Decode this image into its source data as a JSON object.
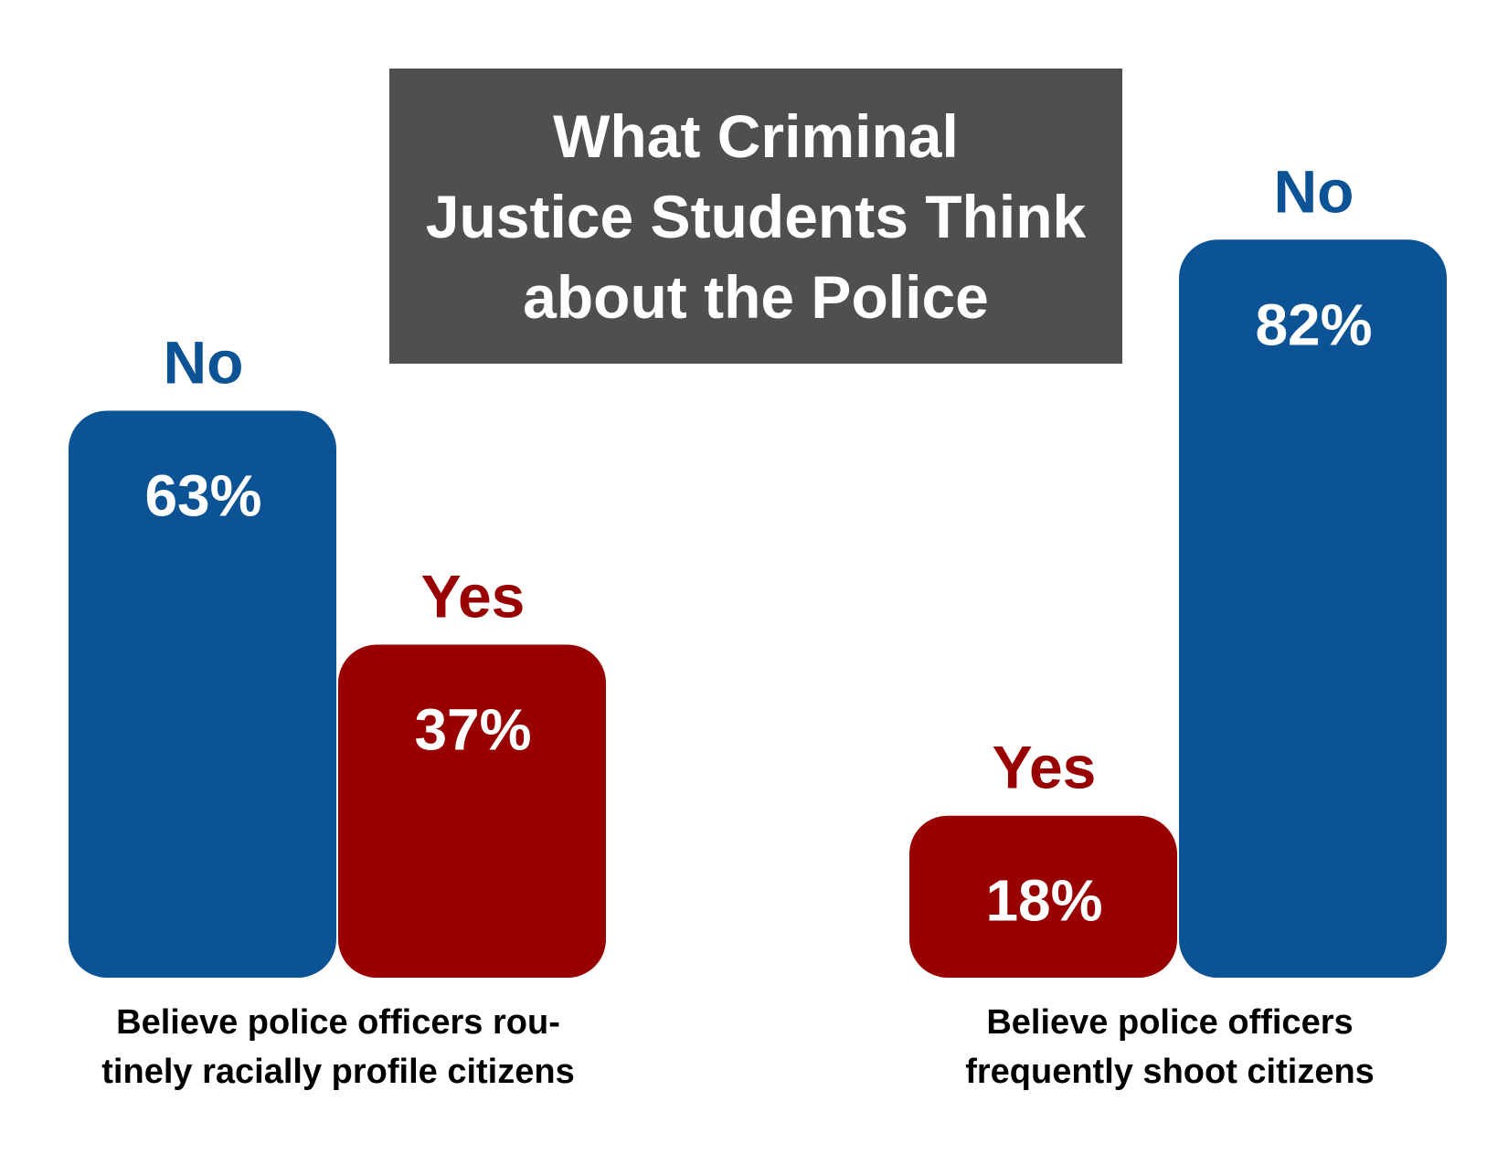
{
  "title_lines": [
    "What Criminal",
    "Justice Students Think",
    "about the Police"
  ],
  "colors": {
    "no": "#0b5394",
    "yes": "#990000",
    "title_bg": "#4f4f4f"
  },
  "chart_data": {
    "type": "bar",
    "title": "What Criminal Justice Students Think about the Police",
    "ylim": [
      0,
      100
    ],
    "grid": false,
    "panels": [
      {
        "caption_lines": [
          "Believe police officers rou-",
          "tinely racially profile citizens"
        ],
        "bars": [
          {
            "category": "No",
            "value": 63,
            "label": "63%",
            "color": "#0b5394"
          },
          {
            "category": "Yes",
            "value": 37,
            "label": "37%",
            "color": "#990000"
          }
        ]
      },
      {
        "caption_lines": [
          "Believe police officers",
          "frequently shoot citizens"
        ],
        "bars": [
          {
            "category": "Yes",
            "value": 18,
            "label": "18%",
            "color": "#990000"
          },
          {
            "category": "No",
            "value": 82,
            "label": "82%",
            "color": "#0b5394"
          }
        ]
      }
    ]
  }
}
